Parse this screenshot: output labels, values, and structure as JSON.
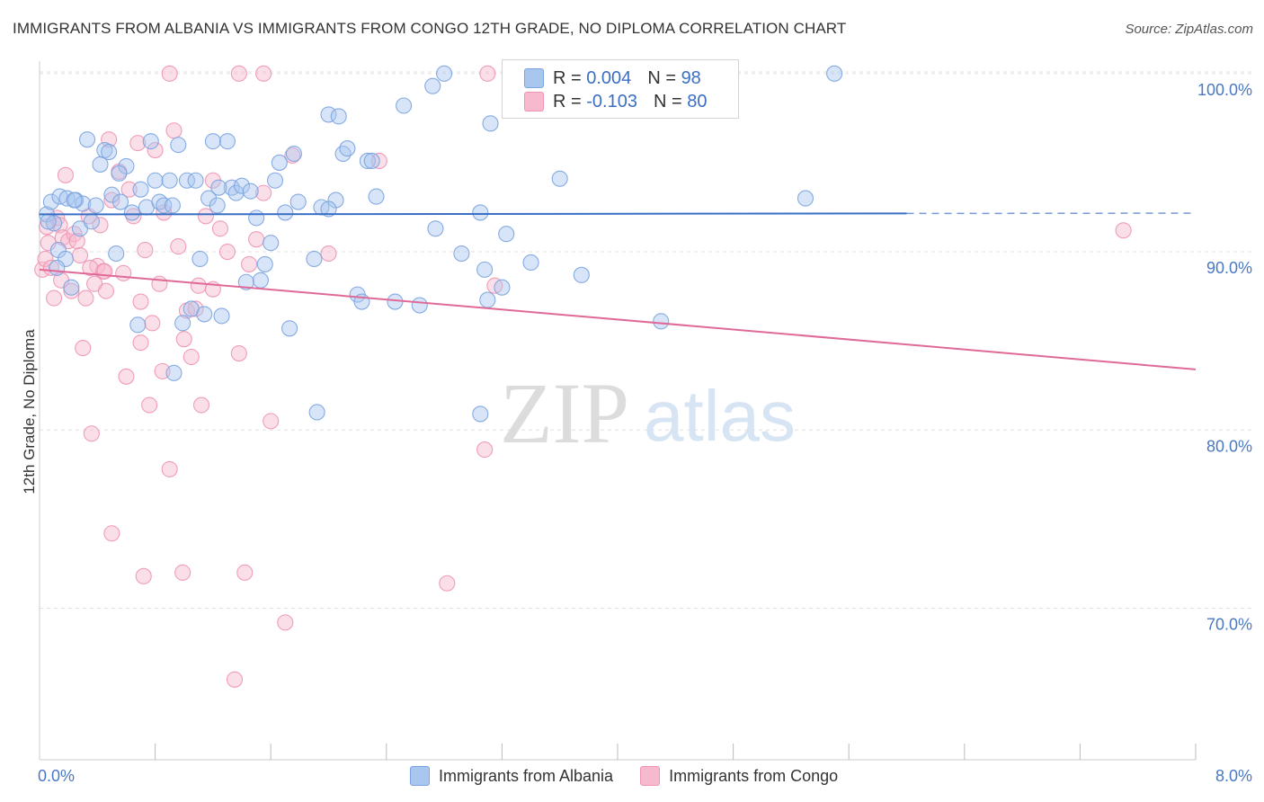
{
  "title": "IMMIGRANTS FROM ALBANIA VS IMMIGRANTS FROM CONGO 12TH GRADE, NO DIPLOMA CORRELATION CHART",
  "source": "Source: ZipAtlas.com",
  "watermark": {
    "zip": "ZIP",
    "atlas": "atlas"
  },
  "legend": {
    "albania": {
      "r_label": "R =",
      "r_value": "0.004",
      "n_label": "N =",
      "n_value": "98"
    },
    "congo": {
      "r_label": "R =",
      "r_value": "-0.103",
      "n_label": "N =",
      "n_value": "80"
    }
  },
  "colors": {
    "albania_fill": "#a9c6ef",
    "albania_stroke": "#7aa3df",
    "albania_line": "#3a6fc6",
    "congo_fill": "#f7b9cd",
    "congo_stroke": "#ee93b2",
    "congo_line": "#e06a97",
    "axis_text": "#4a78c2",
    "grid": "#e2e2e2"
  },
  "chart_data": {
    "type": "scatter",
    "title": "IMMIGRANTS FROM ALBANIA VS IMMIGRANTS FROM CONGO 12TH GRADE, NO DIPLOMA CORRELATION CHART",
    "xlabel": "",
    "ylabel": "12th Grade, No Diploma",
    "xlim": [
      0,
      8
    ],
    "ylim": [
      61.5,
      101
    ],
    "x_tick_labels": [
      "0.0%",
      "8.0%"
    ],
    "y_ticks": [
      70,
      80,
      90,
      100
    ],
    "y_tick_labels": [
      "70.0%",
      "80.0%",
      "90.0%",
      "100.0%"
    ],
    "grid": true,
    "legend_position": "top-center",
    "series": [
      {
        "name": "Immigrants from Albania",
        "trend": {
          "x": [
            0,
            6.0
          ],
          "y": [
            92.1,
            92.15
          ],
          "dashed_to_x": 8.0
        },
        "points": [
          [
            0.05,
            92.1
          ],
          [
            0.08,
            92.8
          ],
          [
            0.1,
            91.6
          ],
          [
            0.13,
            90.1
          ],
          [
            0.14,
            93.1
          ],
          [
            0.18,
            89.6
          ],
          [
            0.19,
            93.0
          ],
          [
            0.22,
            88.0
          ],
          [
            0.25,
            92.9
          ],
          [
            0.28,
            91.3
          ],
          [
            0.3,
            92.7
          ],
          [
            0.33,
            96.3
          ],
          [
            0.36,
            91.7
          ],
          [
            0.39,
            92.6
          ],
          [
            0.42,
            94.9
          ],
          [
            0.45,
            95.7
          ],
          [
            0.48,
            95.6
          ],
          [
            0.5,
            93.2
          ],
          [
            0.53,
            89.9
          ],
          [
            0.56,
            92.8
          ],
          [
            0.6,
            94.8
          ],
          [
            0.64,
            92.2
          ],
          [
            0.68,
            85.9
          ],
          [
            0.7,
            93.5
          ],
          [
            0.74,
            92.5
          ],
          [
            0.77,
            96.2
          ],
          [
            0.8,
            94.0
          ],
          [
            0.83,
            92.8
          ],
          [
            0.86,
            92.6
          ],
          [
            0.9,
            94.0
          ],
          [
            0.93,
            83.2
          ],
          [
            0.96,
            96.0
          ],
          [
            0.99,
            86.0
          ],
          [
            1.02,
            94.0
          ],
          [
            1.05,
            86.8
          ],
          [
            1.08,
            94.0
          ],
          [
            1.11,
            89.6
          ],
          [
            1.14,
            86.5
          ],
          [
            1.17,
            93.0
          ],
          [
            1.2,
            96.2
          ],
          [
            1.23,
            92.6
          ],
          [
            1.26,
            86.4
          ],
          [
            1.3,
            96.2
          ],
          [
            1.33,
            93.6
          ],
          [
            1.36,
            93.3
          ],
          [
            1.4,
            93.7
          ],
          [
            1.43,
            88.3
          ],
          [
            1.46,
            93.4
          ],
          [
            1.5,
            91.9
          ],
          [
            1.53,
            88.4
          ],
          [
            1.56,
            89.3
          ],
          [
            1.6,
            90.5
          ],
          [
            1.63,
            94.0
          ],
          [
            1.66,
            95.0
          ],
          [
            1.7,
            92.2
          ],
          [
            1.73,
            85.7
          ],
          [
            1.76,
            95.5
          ],
          [
            1.79,
            92.8
          ],
          [
            1.9,
            89.6
          ],
          [
            1.92,
            81.0
          ],
          [
            1.95,
            92.5
          ],
          [
            2.0,
            97.7
          ],
          [
            2.05,
            92.9
          ],
          [
            2.07,
            97.6
          ],
          [
            2.1,
            95.5
          ],
          [
            2.13,
            95.8
          ],
          [
            2.2,
            87.6
          ],
          [
            2.23,
            87.2
          ],
          [
            2.27,
            95.1
          ],
          [
            2.3,
            95.1
          ],
          [
            2.33,
            93.1
          ],
          [
            2.46,
            87.2
          ],
          [
            2.52,
            98.2
          ],
          [
            2.63,
            87.0
          ],
          [
            2.72,
            99.3
          ],
          [
            2.74,
            91.3
          ],
          [
            2.8,
            100.0
          ],
          [
            2.92,
            89.9
          ],
          [
            3.05,
            92.2
          ],
          [
            3.05,
            80.9
          ],
          [
            3.08,
            89.0
          ],
          [
            3.1,
            87.3
          ],
          [
            3.12,
            97.2
          ],
          [
            3.2,
            88.0
          ],
          [
            3.23,
            91.0
          ],
          [
            3.4,
            89.4
          ],
          [
            3.6,
            94.1
          ],
          [
            3.75,
            88.7
          ],
          [
            4.3,
            86.1
          ],
          [
            5.3,
            93.0
          ],
          [
            5.5,
            100.0
          ],
          [
            0.06,
            91.7
          ],
          [
            0.24,
            92.9
          ],
          [
            0.55,
            94.4
          ],
          [
            0.92,
            92.6
          ],
          [
            1.24,
            93.6
          ],
          [
            2.0,
            92.4
          ],
          [
            0.12,
            89.1
          ]
        ]
      },
      {
        "name": "Immigrants from Congo",
        "trend": {
          "x": [
            0,
            8.0
          ],
          "y": [
            89.0,
            83.4
          ]
        },
        "points": [
          [
            0.02,
            89.0
          ],
          [
            0.04,
            89.6
          ],
          [
            0.06,
            90.5
          ],
          [
            0.08,
            89.1
          ],
          [
            0.1,
            87.4
          ],
          [
            0.12,
            91.9
          ],
          [
            0.14,
            91.5
          ],
          [
            0.16,
            90.8
          ],
          [
            0.18,
            94.3
          ],
          [
            0.2,
            90.6
          ],
          [
            0.22,
            87.8
          ],
          [
            0.24,
            91.0
          ],
          [
            0.26,
            90.6
          ],
          [
            0.28,
            89.8
          ],
          [
            0.3,
            84.6
          ],
          [
            0.32,
            87.4
          ],
          [
            0.34,
            92.0
          ],
          [
            0.36,
            79.8
          ],
          [
            0.38,
            88.2
          ],
          [
            0.4,
            89.2
          ],
          [
            0.42,
            91.5
          ],
          [
            0.44,
            88.9
          ],
          [
            0.46,
            87.8
          ],
          [
            0.48,
            96.3
          ],
          [
            0.5,
            92.9
          ],
          [
            0.55,
            94.5
          ],
          [
            0.58,
            88.8
          ],
          [
            0.6,
            83.0
          ],
          [
            0.62,
            93.5
          ],
          [
            0.65,
            92.0
          ],
          [
            0.68,
            96.1
          ],
          [
            0.7,
            87.2
          ],
          [
            0.73,
            90.1
          ],
          [
            0.76,
            81.4
          ],
          [
            0.78,
            86.0
          ],
          [
            0.8,
            95.7
          ],
          [
            0.83,
            88.2
          ],
          [
            0.86,
            92.2
          ],
          [
            0.9,
            77.8
          ],
          [
            0.93,
            96.8
          ],
          [
            0.96,
            90.3
          ],
          [
            0.99,
            72.0
          ],
          [
            1.02,
            86.7
          ],
          [
            1.05,
            84.1
          ],
          [
            1.08,
            86.8
          ],
          [
            1.12,
            81.4
          ],
          [
            1.15,
            92.0
          ],
          [
            1.2,
            94.0
          ],
          [
            1.25,
            91.3
          ],
          [
            1.3,
            90.0
          ],
          [
            1.35,
            66.0
          ],
          [
            1.38,
            84.3
          ],
          [
            1.42,
            72.0
          ],
          [
            1.45,
            89.3
          ],
          [
            1.5,
            90.7
          ],
          [
            1.55,
            93.3
          ],
          [
            1.6,
            80.5
          ],
          [
            1.7,
            69.2
          ],
          [
            1.75,
            95.4
          ],
          [
            2.0,
            89.9
          ],
          [
            2.35,
            95.1
          ],
          [
            2.82,
            71.4
          ],
          [
            3.08,
            78.9
          ],
          [
            3.1,
            100.0
          ],
          [
            3.15,
            88.1
          ],
          [
            7.5,
            91.2
          ],
          [
            0.5,
            74.2
          ],
          [
            0.72,
            71.8
          ],
          [
            0.9,
            100.0
          ],
          [
            1.38,
            100.0
          ],
          [
            1.55,
            100.0
          ],
          [
            0.15,
            88.4
          ],
          [
            0.05,
            91.4
          ],
          [
            0.35,
            89.1
          ],
          [
            0.7,
            84.9
          ],
          [
            1.0,
            85.1
          ],
          [
            1.1,
            88.1
          ],
          [
            0.45,
            88.9
          ],
          [
            0.85,
            83.3
          ],
          [
            1.2,
            87.9
          ]
        ]
      }
    ]
  },
  "bottom_legend": {
    "albania": "Immigrants from Albania",
    "congo": "Immigrants from Congo"
  }
}
